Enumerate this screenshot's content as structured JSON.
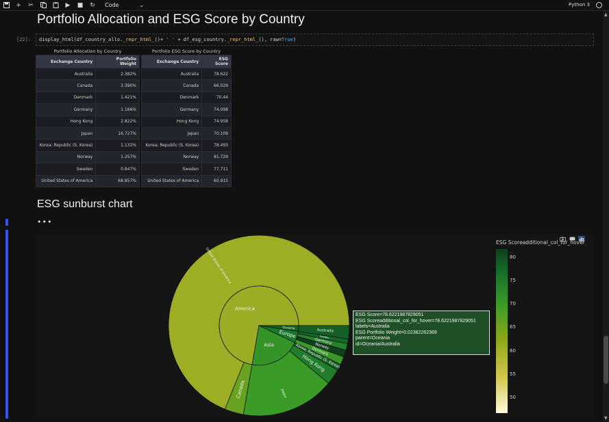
{
  "toolbar": {
    "cell_type": "Code",
    "kernel": "Python 3"
  },
  "notebook": {
    "heading1": "Portfolio Allocation and ESG Score by Country",
    "prompt": "[22]:",
    "code": {
      "p1": "display_html(df_country_allo.",
      "p2": "_repr_html_",
      "p3": "()+ ",
      "p4": "' '",
      "p5": " + df_esg_country.",
      "p6": "_repr_html_",
      "p7": "(), raw=",
      "p8": "True",
      "p9": ")"
    },
    "heading2": "ESG sunburst chart",
    "ellipsis": "•••"
  },
  "table_alloc": {
    "caption": "Portfolio Allocation by Country",
    "headers": [
      "Exchange Country",
      "Portfolio Weight"
    ],
    "rows": [
      [
        "Australia",
        "2.382%"
      ],
      [
        "Canada",
        "3.390%"
      ],
      [
        "Denmark",
        "1.421%"
      ],
      [
        "Germany",
        "1.166%"
      ],
      [
        "Hong Kong",
        "2.822%"
      ],
      [
        "Japan",
        "16.727%"
      ],
      [
        "Korea; Republic (S. Korea)",
        "1.132%"
      ],
      [
        "Norway",
        "1.257%"
      ],
      [
        "Sweden",
        "0.847%"
      ],
      [
        "United States of America",
        "68.857%"
      ]
    ]
  },
  "table_esg": {
    "caption": "Portfolio ESG Score by Country",
    "headers": [
      "Exchange Country",
      "ESG Score"
    ],
    "rows": [
      [
        "Australia",
        "78.622"
      ],
      [
        "Canada",
        "66.029"
      ],
      [
        "Denmark",
        "70.44"
      ],
      [
        "Germany",
        "74.098"
      ],
      [
        "Hong Kong",
        "74.958"
      ],
      [
        "Japan",
        "70.109"
      ],
      [
        "Korea; Republic (S. Korea)",
        "78.493"
      ],
      [
        "Norway",
        "81.729"
      ],
      [
        "Sweden",
        "77.711"
      ],
      [
        "United States of America",
        "60.915"
      ]
    ]
  },
  "sunburst": {
    "colorbar_title": "ESG Scoreadditional_col_for_hover",
    "colorbar_ticks": [
      "80",
      "75",
      "70",
      "65",
      "60",
      "55",
      "50"
    ],
    "labels": {
      "usa": "United States of America",
      "america": "America",
      "canada": "Canada",
      "asia": "Asia",
      "japan": "Japan",
      "hongkong": "Hong Kong",
      "korea": "Korea; Republic (S. Korea)",
      "europe": "Europe",
      "denmark": "Denmark",
      "norway": "Norway",
      "germany": "Germany",
      "sweden": "Sweden",
      "oceania": "Oceania",
      "australia": "Australia"
    },
    "hover": {
      "line1": "ESG Score=78.6221987829051",
      "line2": "ESG Scoreadditional_col_for_hover=78.6221987829051",
      "line3": "labels=Australia",
      "line4": "ESG Portfolio Weight=0.02382262369",
      "line5": "parent=Oceania",
      "line6": "id=Oceania/Australia"
    }
  },
  "chart_data": {
    "type": "sunburst",
    "title": "",
    "colorbar_title": "ESG Scoreadditional_col_for_hover",
    "color_range": [
      47,
      82
    ],
    "parents": [
      {
        "name": "America",
        "children": [
          {
            "name": "United States of America",
            "weight": 68.857,
            "esg": 60.915
          },
          {
            "name": "Canada",
            "weight": 3.39,
            "esg": 66.029
          }
        ]
      },
      {
        "name": "Asia",
        "children": [
          {
            "name": "Japan",
            "weight": 16.727,
            "esg": 70.109
          },
          {
            "name": "Hong Kong",
            "weight": 2.822,
            "esg": 74.958
          },
          {
            "name": "Korea; Republic (S. Korea)",
            "weight": 1.132,
            "esg": 78.493
          }
        ]
      },
      {
        "name": "Europe",
        "children": [
          {
            "name": "Denmark",
            "weight": 1.421,
            "esg": 70.44
          },
          {
            "name": "Norway",
            "weight": 1.257,
            "esg": 81.729
          },
          {
            "name": "Germany",
            "weight": 1.166,
            "esg": 74.098
          },
          {
            "name": "Sweden",
            "weight": 0.847,
            "esg": 77.711
          }
        ]
      },
      {
        "name": "Oceania",
        "children": [
          {
            "name": "Australia",
            "weight": 2.382,
            "esg": 78.622
          }
        ]
      }
    ]
  }
}
